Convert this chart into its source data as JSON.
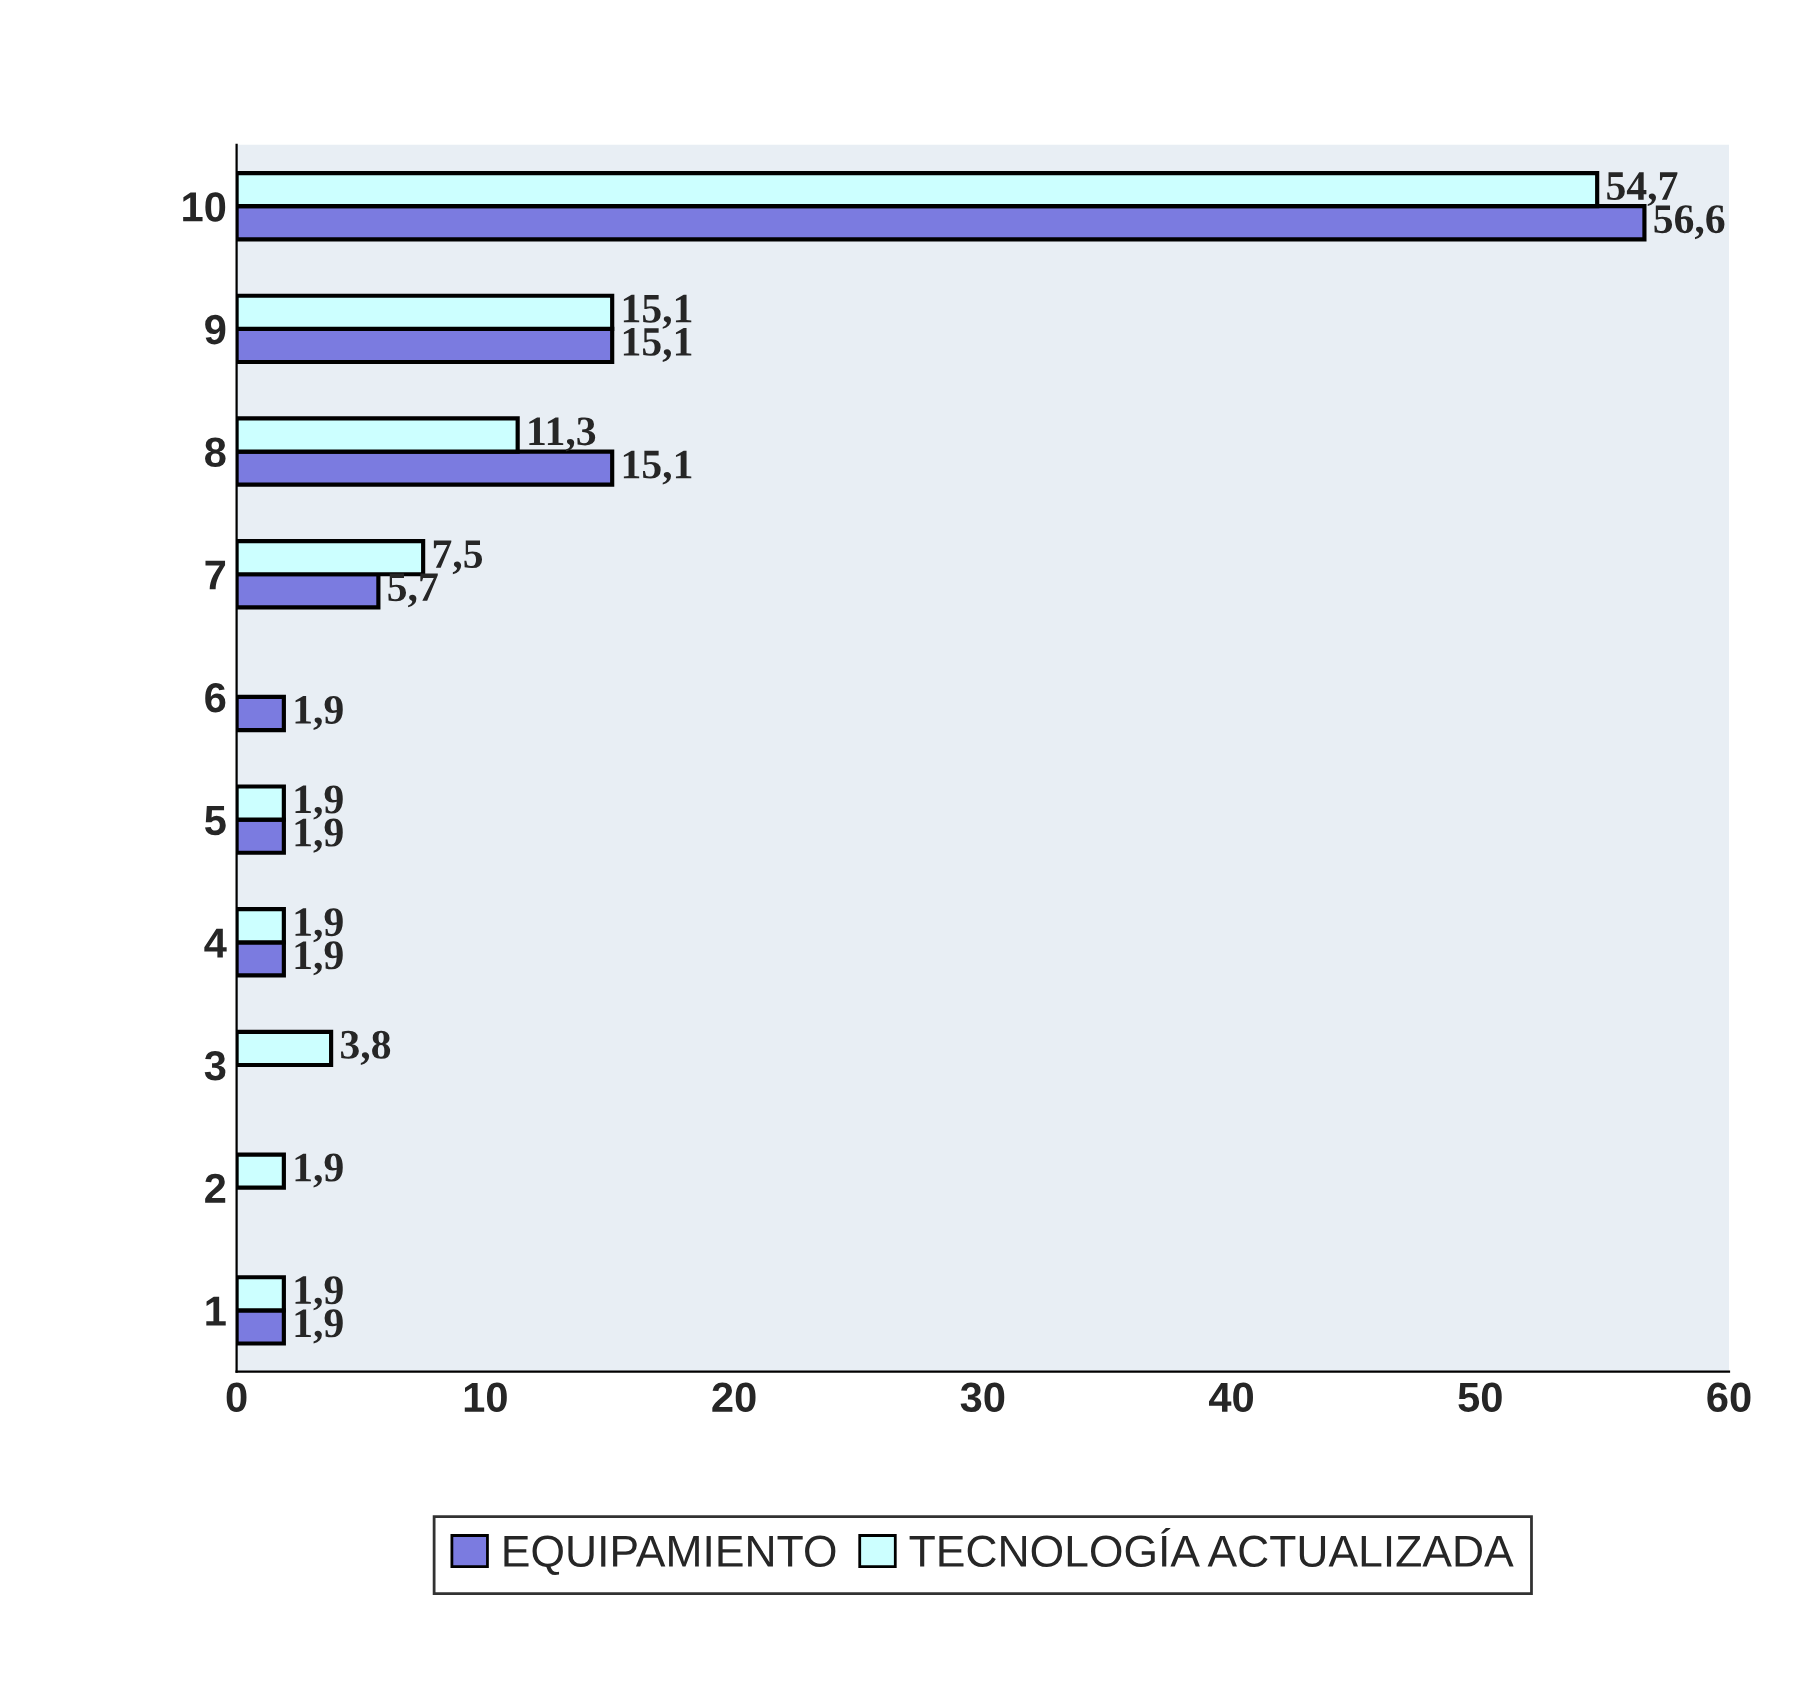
{
  "chart_data": {
    "type": "bar",
    "orientation": "horizontal",
    "categories": [
      "10",
      "9",
      "8",
      "7",
      "6",
      "5",
      "4",
      "3",
      "2",
      "1"
    ],
    "series": [
      {
        "name": "EQUIPAMIENTO",
        "color": "#7b7be0",
        "values": [
          56.6,
          15.1,
          15.1,
          5.7,
          1.9,
          1.9,
          1.9,
          null,
          null,
          1.9
        ],
        "value_labels": [
          "56,6",
          "15,1",
          "15,1",
          "5,7",
          "1,9",
          "1,9",
          "1,9",
          null,
          null,
          "1,9"
        ]
      },
      {
        "name": "TECNOLOGÍA ACTUALIZADA",
        "color": "#ccffff",
        "values": [
          54.7,
          15.1,
          11.3,
          7.5,
          null,
          1.9,
          1.9,
          3.8,
          1.9,
          1.9
        ],
        "value_labels": [
          "54,7",
          "15,1",
          "11,3",
          "7,5",
          null,
          "1,9",
          "1,9",
          "3,8",
          "1,9",
          "1,9"
        ]
      }
    ],
    "xlim": [
      0,
      60
    ],
    "xticks": [
      0,
      10,
      20,
      30,
      40,
      50,
      60
    ],
    "grid": false,
    "legend": "bottom"
  }
}
